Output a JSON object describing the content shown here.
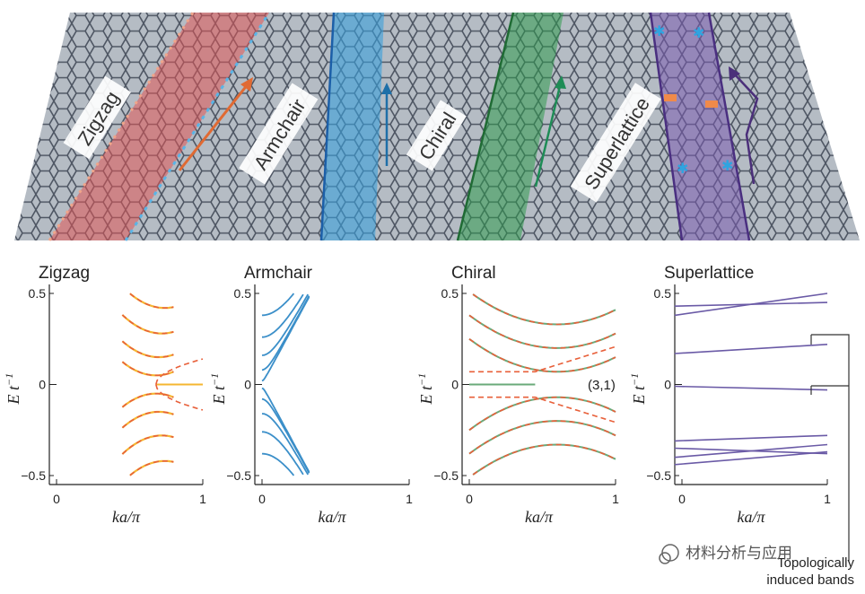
{
  "top_panel": {
    "ribbons": [
      {
        "label": "Zigzag",
        "color": "#e05555"
      },
      {
        "label": "Armchair",
        "color": "#3aa0dc"
      },
      {
        "label": "Chiral",
        "color": "#2f9a4e"
      },
      {
        "label": "Superlattice",
        "color": "#7a5bb0"
      }
    ]
  },
  "axes_common": {
    "ylabel": "E t",
    "ylabel_sup": "−1",
    "xlabel": "ka/π",
    "yticks": [
      "0.5",
      "0",
      "−0.5"
    ],
    "xticks": [
      "0",
      "1"
    ]
  },
  "chart_data": [
    {
      "type": "line",
      "title": "Zigzag",
      "xlabel": "ka/π",
      "ylabel": "E t−1",
      "xlim": [
        0,
        1
      ],
      "ylim": [
        -0.5,
        0.5
      ],
      "series": [
        {
          "name": "",
          "color": "#f5b731"
        },
        {
          "name": "",
          "color": "#e8603a",
          "style": "dashed"
        }
      ]
    },
    {
      "type": "line",
      "title": "Armchair",
      "xlabel": "ka/π",
      "ylabel": "E t−1",
      "xlim": [
        0,
        1
      ],
      "ylim": [
        -0.5,
        0.5
      ],
      "series": [
        {
          "name": "",
          "color": "#3b8fc9"
        }
      ]
    },
    {
      "type": "line",
      "title": "Chiral",
      "xlabel": "ka/π",
      "ylabel": "E t−1",
      "xlim": [
        0,
        1
      ],
      "ylim": [
        -0.5,
        0.5
      ],
      "annotation": "(3,1)",
      "series": [
        {
          "name": "",
          "color": "#6aaa7a"
        },
        {
          "name": "",
          "color": "#e8603a",
          "style": "dashed"
        }
      ]
    },
    {
      "type": "line",
      "title": "Superlattice",
      "xlabel": "ka/π",
      "ylabel": "E t−1",
      "xlim": [
        0,
        1
      ],
      "ylim": [
        -0.5,
        0.5
      ],
      "annotation": "Topologically induced bands",
      "series": [
        {
          "name": "",
          "color": "#6a5aa6"
        }
      ]
    }
  ],
  "annotations": {
    "chiral_index": "(3,1)",
    "superlattice_line1": "Topologically",
    "superlattice_line2": "induced bands"
  },
  "watermark": "材料分析与应用"
}
